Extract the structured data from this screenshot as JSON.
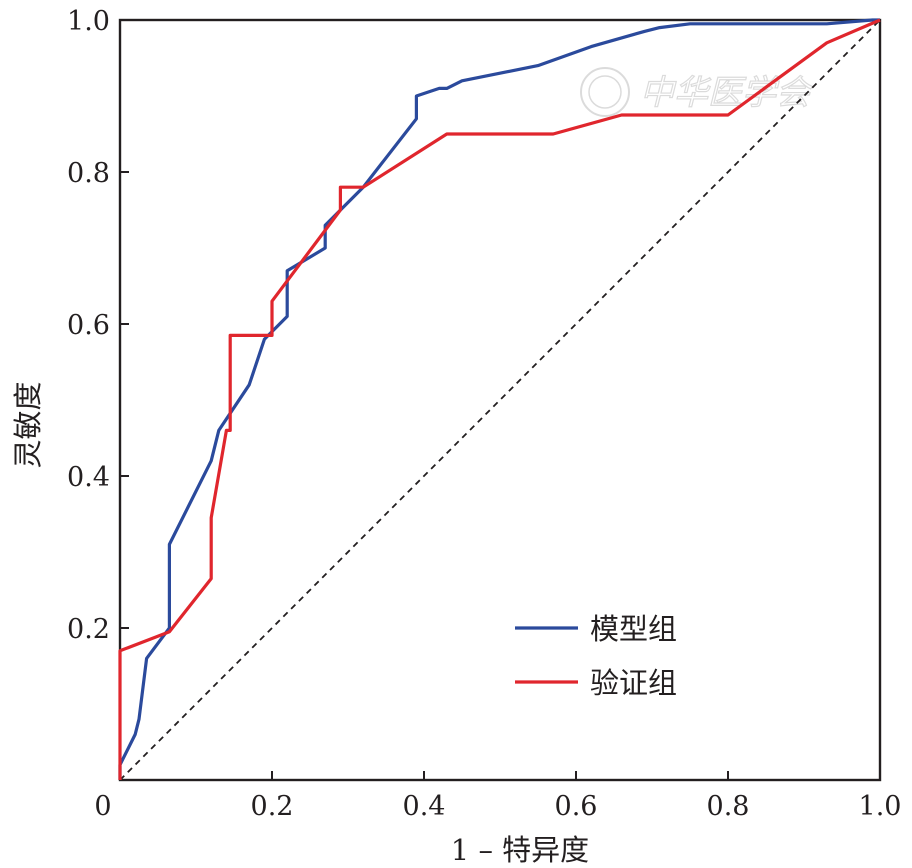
{
  "chart_data": {
    "type": "line",
    "title": "",
    "xlabel": "1 – 特异度",
    "ylabel": "灵敏度",
    "xlim": [
      0,
      1
    ],
    "ylim": [
      0,
      1
    ],
    "x_ticks": [
      "0",
      "0.2",
      "0.4",
      "0.6",
      "0.8",
      "1.0"
    ],
    "y_ticks": [
      "0.2",
      "0.4",
      "0.6",
      "0.8",
      "1.0"
    ],
    "x_ticks_values": [
      0,
      0.2,
      0.4,
      0.6,
      0.8,
      1.0
    ],
    "y_ticks_values": [
      0.2,
      0.4,
      0.6,
      0.8,
      1.0
    ],
    "grid": false,
    "legend_position": "bottom-right",
    "reference_line": {
      "style": "dashed",
      "color": "#231f20",
      "from": [
        0,
        0
      ],
      "to": [
        1,
        1
      ]
    },
    "series": [
      {
        "name": "模型组",
        "color": "#2b4a9c",
        "points": [
          [
            0.0,
            0.0
          ],
          [
            0.0,
            0.02
          ],
          [
            0.02,
            0.06
          ],
          [
            0.025,
            0.08
          ],
          [
            0.035,
            0.16
          ],
          [
            0.065,
            0.2
          ],
          [
            0.065,
            0.31
          ],
          [
            0.09,
            0.36
          ],
          [
            0.12,
            0.42
          ],
          [
            0.13,
            0.46
          ],
          [
            0.17,
            0.52
          ],
          [
            0.19,
            0.58
          ],
          [
            0.22,
            0.61
          ],
          [
            0.22,
            0.67
          ],
          [
            0.27,
            0.7
          ],
          [
            0.27,
            0.73
          ],
          [
            0.32,
            0.78
          ],
          [
            0.39,
            0.87
          ],
          [
            0.39,
            0.9
          ],
          [
            0.42,
            0.91
          ],
          [
            0.43,
            0.91
          ],
          [
            0.45,
            0.92
          ],
          [
            0.55,
            0.94
          ],
          [
            0.62,
            0.965
          ],
          [
            0.69,
            0.985
          ],
          [
            0.71,
            0.99
          ],
          [
            0.75,
            0.995
          ],
          [
            0.93,
            0.995
          ],
          [
            0.99,
            1.0
          ],
          [
            1.0,
            1.0
          ]
        ]
      },
      {
        "name": "验证组",
        "color": "#e0262d",
        "points": [
          [
            0.0,
            0.0
          ],
          [
            0.0,
            0.17
          ],
          [
            0.065,
            0.195
          ],
          [
            0.12,
            0.265
          ],
          [
            0.12,
            0.345
          ],
          [
            0.14,
            0.46
          ],
          [
            0.145,
            0.46
          ],
          [
            0.145,
            0.585
          ],
          [
            0.2,
            0.585
          ],
          [
            0.2,
            0.63
          ],
          [
            0.23,
            0.67
          ],
          [
            0.29,
            0.75
          ],
          [
            0.29,
            0.78
          ],
          [
            0.32,
            0.78
          ],
          [
            0.43,
            0.85
          ],
          [
            0.57,
            0.85
          ],
          [
            0.66,
            0.875
          ],
          [
            0.8,
            0.875
          ],
          [
            0.93,
            0.97
          ],
          [
            1.0,
            1.0
          ]
        ]
      }
    ]
  },
  "watermark": {
    "text": "中华医学会"
  }
}
